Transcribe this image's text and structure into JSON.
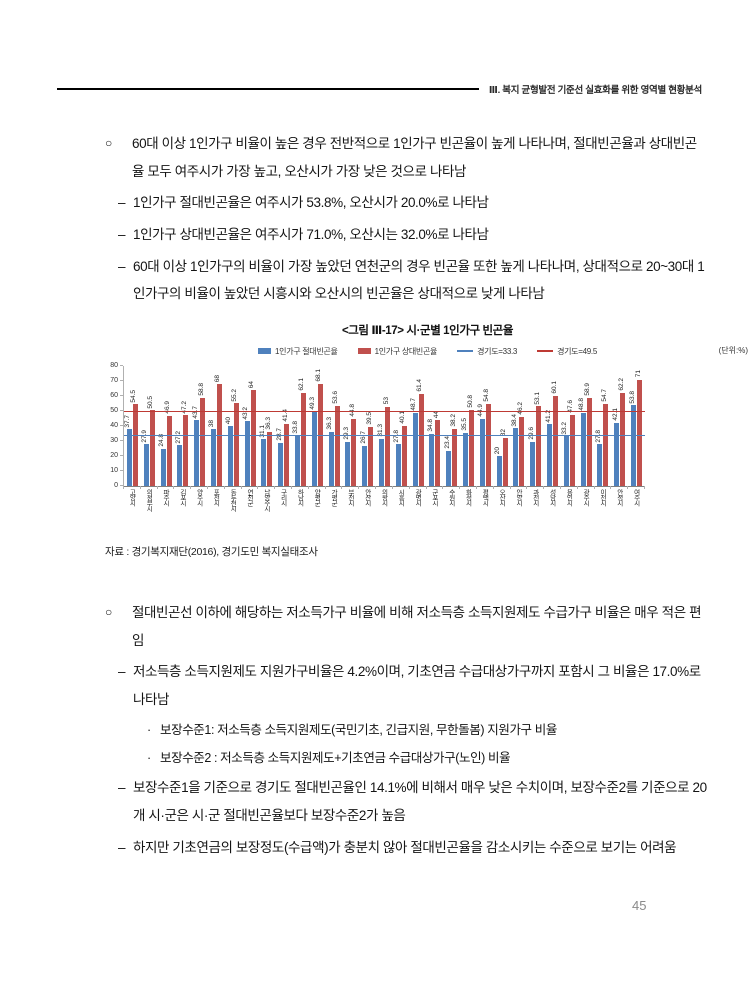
{
  "header": {
    "title": "Ⅲ. 복지 균형발전 기준선 실효화를 위한 영역별 현황분석"
  },
  "markers": {
    "circle": "○",
    "dash": "–",
    "dot": "·"
  },
  "content_top": {
    "bullet": "60대 이상 1인가구 비율이 높은 경우 전반적으로 1인가구 빈곤율이 높게 나타나며, 절대빈곤율과 상대빈곤율 모두 여주시가 가장 높고, 오산시가 가장 낮은 것으로 나타남",
    "subs": [
      "1인가구 절대빈곤율은 여주시가 53.8%, 오산시가 20.0%로 나타남",
      "1인가구 상대빈곤율은 여주시가 71.0%, 오산시는 32.0%로 나타남",
      "60대 이상 1인가구의 비율이 가장 높았던 연천군의 경우 빈곤율 또한 높게 나타나며, 상대적으로 20~30대 1인가구의 비율이 높았던 시흥시와 오산시의 빈곤율은 상대적으로 낮게 나타남"
    ]
  },
  "figure": {
    "source": "자료 : 경기복지재단(2016), 경기도민 복지실태조사"
  },
  "chart_data": {
    "type": "bar",
    "title": "<그림 Ⅲ-17> 시·군별 1인가구 빈곤율",
    "unit": "(단위:%)",
    "ylim": [
      0,
      80
    ],
    "ytick_step": 10,
    "grid": false,
    "legend_position": "top",
    "categories": [
      "고양시",
      "의정부시",
      "파주시",
      "김포시",
      "양주시",
      "포천시",
      "동두천시",
      "연천군",
      "남양주시",
      "구리시",
      "하남시",
      "양평군",
      "가평군",
      "부천시",
      "안산시",
      "의왕시",
      "시흥시",
      "광명시",
      "군포시",
      "수원시",
      "화성시",
      "평택시",
      "오산시",
      "안양시",
      "과천시",
      "성남시",
      "용인시",
      "광주시",
      "이천시",
      "안성시",
      "여주시"
    ],
    "series": [
      {
        "name": "1인가구 절대빈곤율",
        "color": "#4f81bd",
        "values": [
          37.7,
          27.9,
          24.8,
          27.2,
          43.7,
          38,
          40,
          43.2,
          31.1,
          28.7,
          33.8,
          49.3,
          36.3,
          29.3,
          26.7,
          31.3,
          27.8,
          48.7,
          34.8,
          23.4,
          35.5,
          44.9,
          20,
          38.4,
          29.6,
          41.2,
          33.2,
          48.8,
          27.8,
          42.1,
          53.8
        ]
      },
      {
        "name": "1인가구 상대빈곤율",
        "color": "#c0504d",
        "values": [
          54.5,
          50.5,
          46.9,
          47.2,
          58.8,
          68,
          55.2,
          64,
          36.3,
          41.4,
          62.1,
          68.1,
          53.6,
          44.8,
          39.5,
          53,
          40.1,
          61.4,
          44,
          38.2,
          50.8,
          54.8,
          32,
          46.2,
          53.1,
          60.1,
          47.6,
          58.9,
          54.7,
          62.2,
          71
        ]
      }
    ],
    "ref_lines": [
      {
        "label": "경기도=33.3",
        "value": 33.3,
        "color": "#4f81bd"
      },
      {
        "label": "경기도=49.5",
        "value": 49.5,
        "color": "#be3a34"
      }
    ]
  },
  "content_bottom": {
    "bullet": "절대빈곤선 이하에 해당하는 저소득가구 비율에 비해 저소득층 소득지원제도 수급가구 비율은 매우 적은 편임",
    "subs": [
      {
        "level": "dash",
        "text": "저소득층 소득지원제도 지원가구비율은 4.2%이며, 기초연금 수급대상가구까지 포함시 그 비율은 17.0%로 나타남"
      },
      {
        "level": "dot",
        "text": "보장수준1: 저소득층 소득지원제도(국민기초, 긴급지원, 무한돌봄) 지원가구 비율"
      },
      {
        "level": "dot",
        "text": "보장수준2 : 저소득층 소득지원제도+기초연금 수급대상가구(노인) 비율"
      },
      {
        "level": "dash",
        "text": "보장수준1을 기준으로 경기도 절대빈곤율인 14.1%에 비해서 매우 낮은 수치이며, 보장수준2를 기준으로 20개 시·군은 시·군 절대빈곤율보다 보장수준2가 높음"
      },
      {
        "level": "dash",
        "text": "하지만 기초연금의 보장정도(수급액)가 충분치 않아 절대빈곤율을 감소시키는 수준으로 보기는 어려움"
      }
    ]
  },
  "page_number": "45"
}
